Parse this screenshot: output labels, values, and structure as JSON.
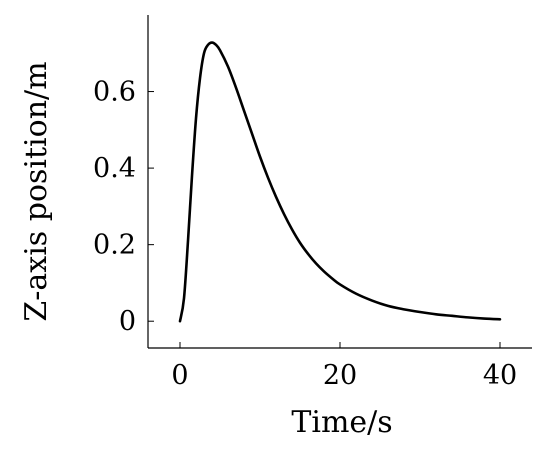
{
  "chart_data": {
    "type": "line",
    "xlabel": "Time/s",
    "ylabel": "Z-axis position/m",
    "xlim": [
      -4,
      44
    ],
    "ylim": [
      -0.07,
      0.8
    ],
    "x_ticks": [
      0,
      20,
      40
    ],
    "x_tick_labels": [
      "0",
      "20",
      "40"
    ],
    "y_ticks": [
      0,
      0.2,
      0.4,
      0.6
    ],
    "y_tick_labels": [
      "0",
      "0.2",
      "0.4",
      "0.6"
    ],
    "grid": false,
    "series": [
      {
        "color": "#000000",
        "x": [
          0,
          0.5,
          1,
          1.5,
          2,
          2.5,
          3,
          3.5,
          4,
          4.5,
          5,
          6,
          7,
          8,
          9,
          10,
          11,
          12,
          13,
          14,
          15,
          16,
          17,
          18,
          19,
          20,
          22,
          24,
          26,
          28,
          30,
          32,
          34,
          36,
          38,
          40
        ],
        "y": [
          0.0,
          0.06,
          0.21,
          0.38,
          0.53,
          0.635,
          0.7,
          0.722,
          0.728,
          0.722,
          0.708,
          0.665,
          0.61,
          0.55,
          0.49,
          0.43,
          0.375,
          0.325,
          0.28,
          0.24,
          0.205,
          0.176,
          0.151,
          0.13,
          0.112,
          0.096,
          0.072,
          0.054,
          0.04,
          0.031,
          0.024,
          0.018,
          0.014,
          0.01,
          0.007,
          0.005
        ]
      }
    ]
  }
}
